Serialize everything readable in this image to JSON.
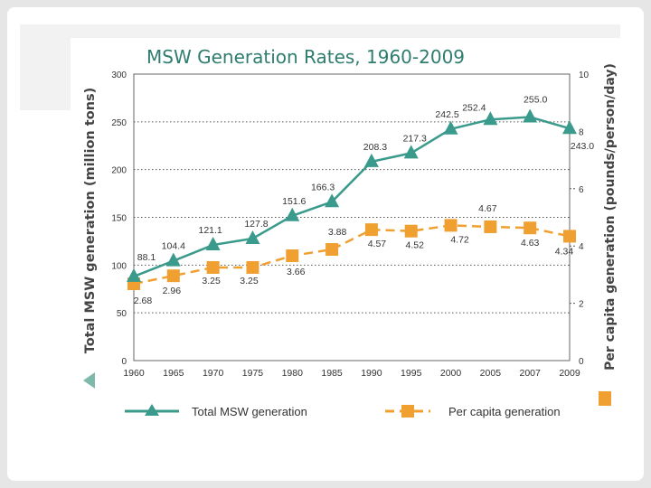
{
  "chart_data": {
    "type": "line",
    "title": "MSW Generation Rates, 1960-2009",
    "ylabel_left": "Total MSW generation (million tons)",
    "ylabel_right": "Per capita generation (pounds/person/day)",
    "xlabel": "",
    "categories": [
      "1960",
      "1965",
      "1970",
      "1975",
      "1980",
      "1985",
      "1990",
      "1995",
      "2000",
      "2005",
      "2007",
      "2009"
    ],
    "ylim_left": [
      0,
      300
    ],
    "yticks_left": [
      0,
      50,
      100,
      150,
      200,
      250,
      300
    ],
    "ylim_right": [
      0,
      10
    ],
    "yticks_right": [
      0,
      2,
      4,
      6,
      8,
      10
    ],
    "grid": true,
    "legend": "bottom",
    "series": [
      {
        "name": "Total MSW generation",
        "axis": "left",
        "color": "#3a9a8c",
        "marker": "triangle",
        "values": [
          88.1,
          104.4,
          121.1,
          127.8,
          151.6,
          166.3,
          208.3,
          217.3,
          242.5,
          252.4,
          255.0,
          243.0
        ],
        "labels": [
          "88.1",
          "104.4",
          "121.1",
          "127.8",
          "151.6",
          "166.3",
          "208.3",
          "217.3",
          "242.5",
          "252.4",
          "255.0",
          "243.0"
        ]
      },
      {
        "name": "Per capita generation",
        "axis": "right",
        "color": "#f0a030",
        "marker": "square",
        "values": [
          2.68,
          2.96,
          3.25,
          3.25,
          3.66,
          3.88,
          4.57,
          4.52,
          4.72,
          4.67,
          4.63,
          4.34
        ],
        "labels": [
          "2.68",
          "2.96",
          "3.25",
          "3.25",
          "3.66",
          "3.88",
          "4.57",
          "4.52",
          "4.72",
          "4.67",
          "4.63",
          "4.34"
        ]
      }
    ]
  },
  "colors": {
    "total_line": "#3a9a8c",
    "percapita_line": "#f0a030",
    "grid": "#555555",
    "title": "#2e7d6e"
  }
}
